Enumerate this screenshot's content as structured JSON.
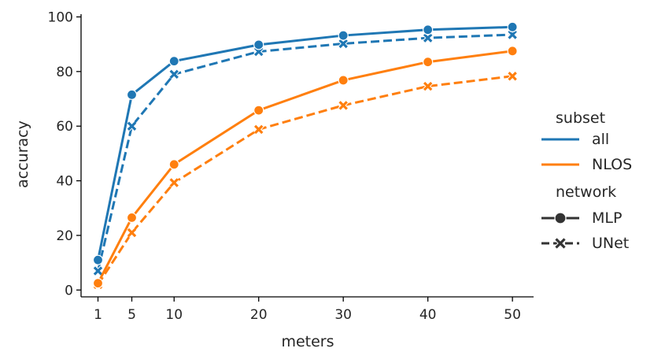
{
  "chart_data": {
    "type": "line",
    "title": "",
    "xlabel": "meters",
    "ylabel": "accuracy",
    "x": [
      1,
      5,
      10,
      20,
      30,
      40,
      50
    ],
    "xticks": [
      1,
      5,
      10,
      20,
      30,
      40,
      50
    ],
    "xlim": [
      -1,
      52.5
    ],
    "yticks": [
      0,
      20,
      40,
      60,
      80,
      100
    ],
    "ylim": [
      -2.5,
      101
    ],
    "grid": false,
    "legend_position": "right",
    "series": [
      {
        "name": "all / MLP",
        "subset": "all",
        "network": "MLP",
        "marker": "circle",
        "dash": "solid",
        "color": "#1f77b4",
        "values": [
          11.0,
          71.5,
          83.8,
          89.8,
          93.2,
          95.3,
          96.3
        ]
      },
      {
        "name": "all / UNet",
        "subset": "all",
        "network": "UNet",
        "marker": "x",
        "dash": "dashed",
        "color": "#1f77b4",
        "values": [
          7.0,
          60.0,
          79.0,
          87.3,
          90.2,
          92.3,
          93.5
        ]
      },
      {
        "name": "NLOS / MLP",
        "subset": "NLOS",
        "network": "MLP",
        "marker": "circle",
        "dash": "solid",
        "color": "#ff7f0e",
        "values": [
          2.5,
          26.5,
          46.0,
          65.8,
          76.8,
          83.5,
          87.5
        ]
      },
      {
        "name": "NLOS / UNet",
        "subset": "NLOS",
        "network": "UNet",
        "marker": "x",
        "dash": "dashed",
        "color": "#ff7f0e",
        "values": [
          2.0,
          21.0,
          39.3,
          58.8,
          67.6,
          74.6,
          78.3
        ]
      }
    ]
  },
  "legend": {
    "subset_title": "subset",
    "network_title": "network",
    "subset_items": [
      {
        "label": "all",
        "color": "#1f77b4"
      },
      {
        "label": "NLOS",
        "color": "#ff7f0e"
      }
    ],
    "network_items": [
      {
        "label": "MLP",
        "marker": "circle",
        "dash": "solid",
        "color": "#333333"
      },
      {
        "label": "UNet",
        "marker": "x",
        "dash": "dashed",
        "color": "#333333"
      }
    ]
  }
}
